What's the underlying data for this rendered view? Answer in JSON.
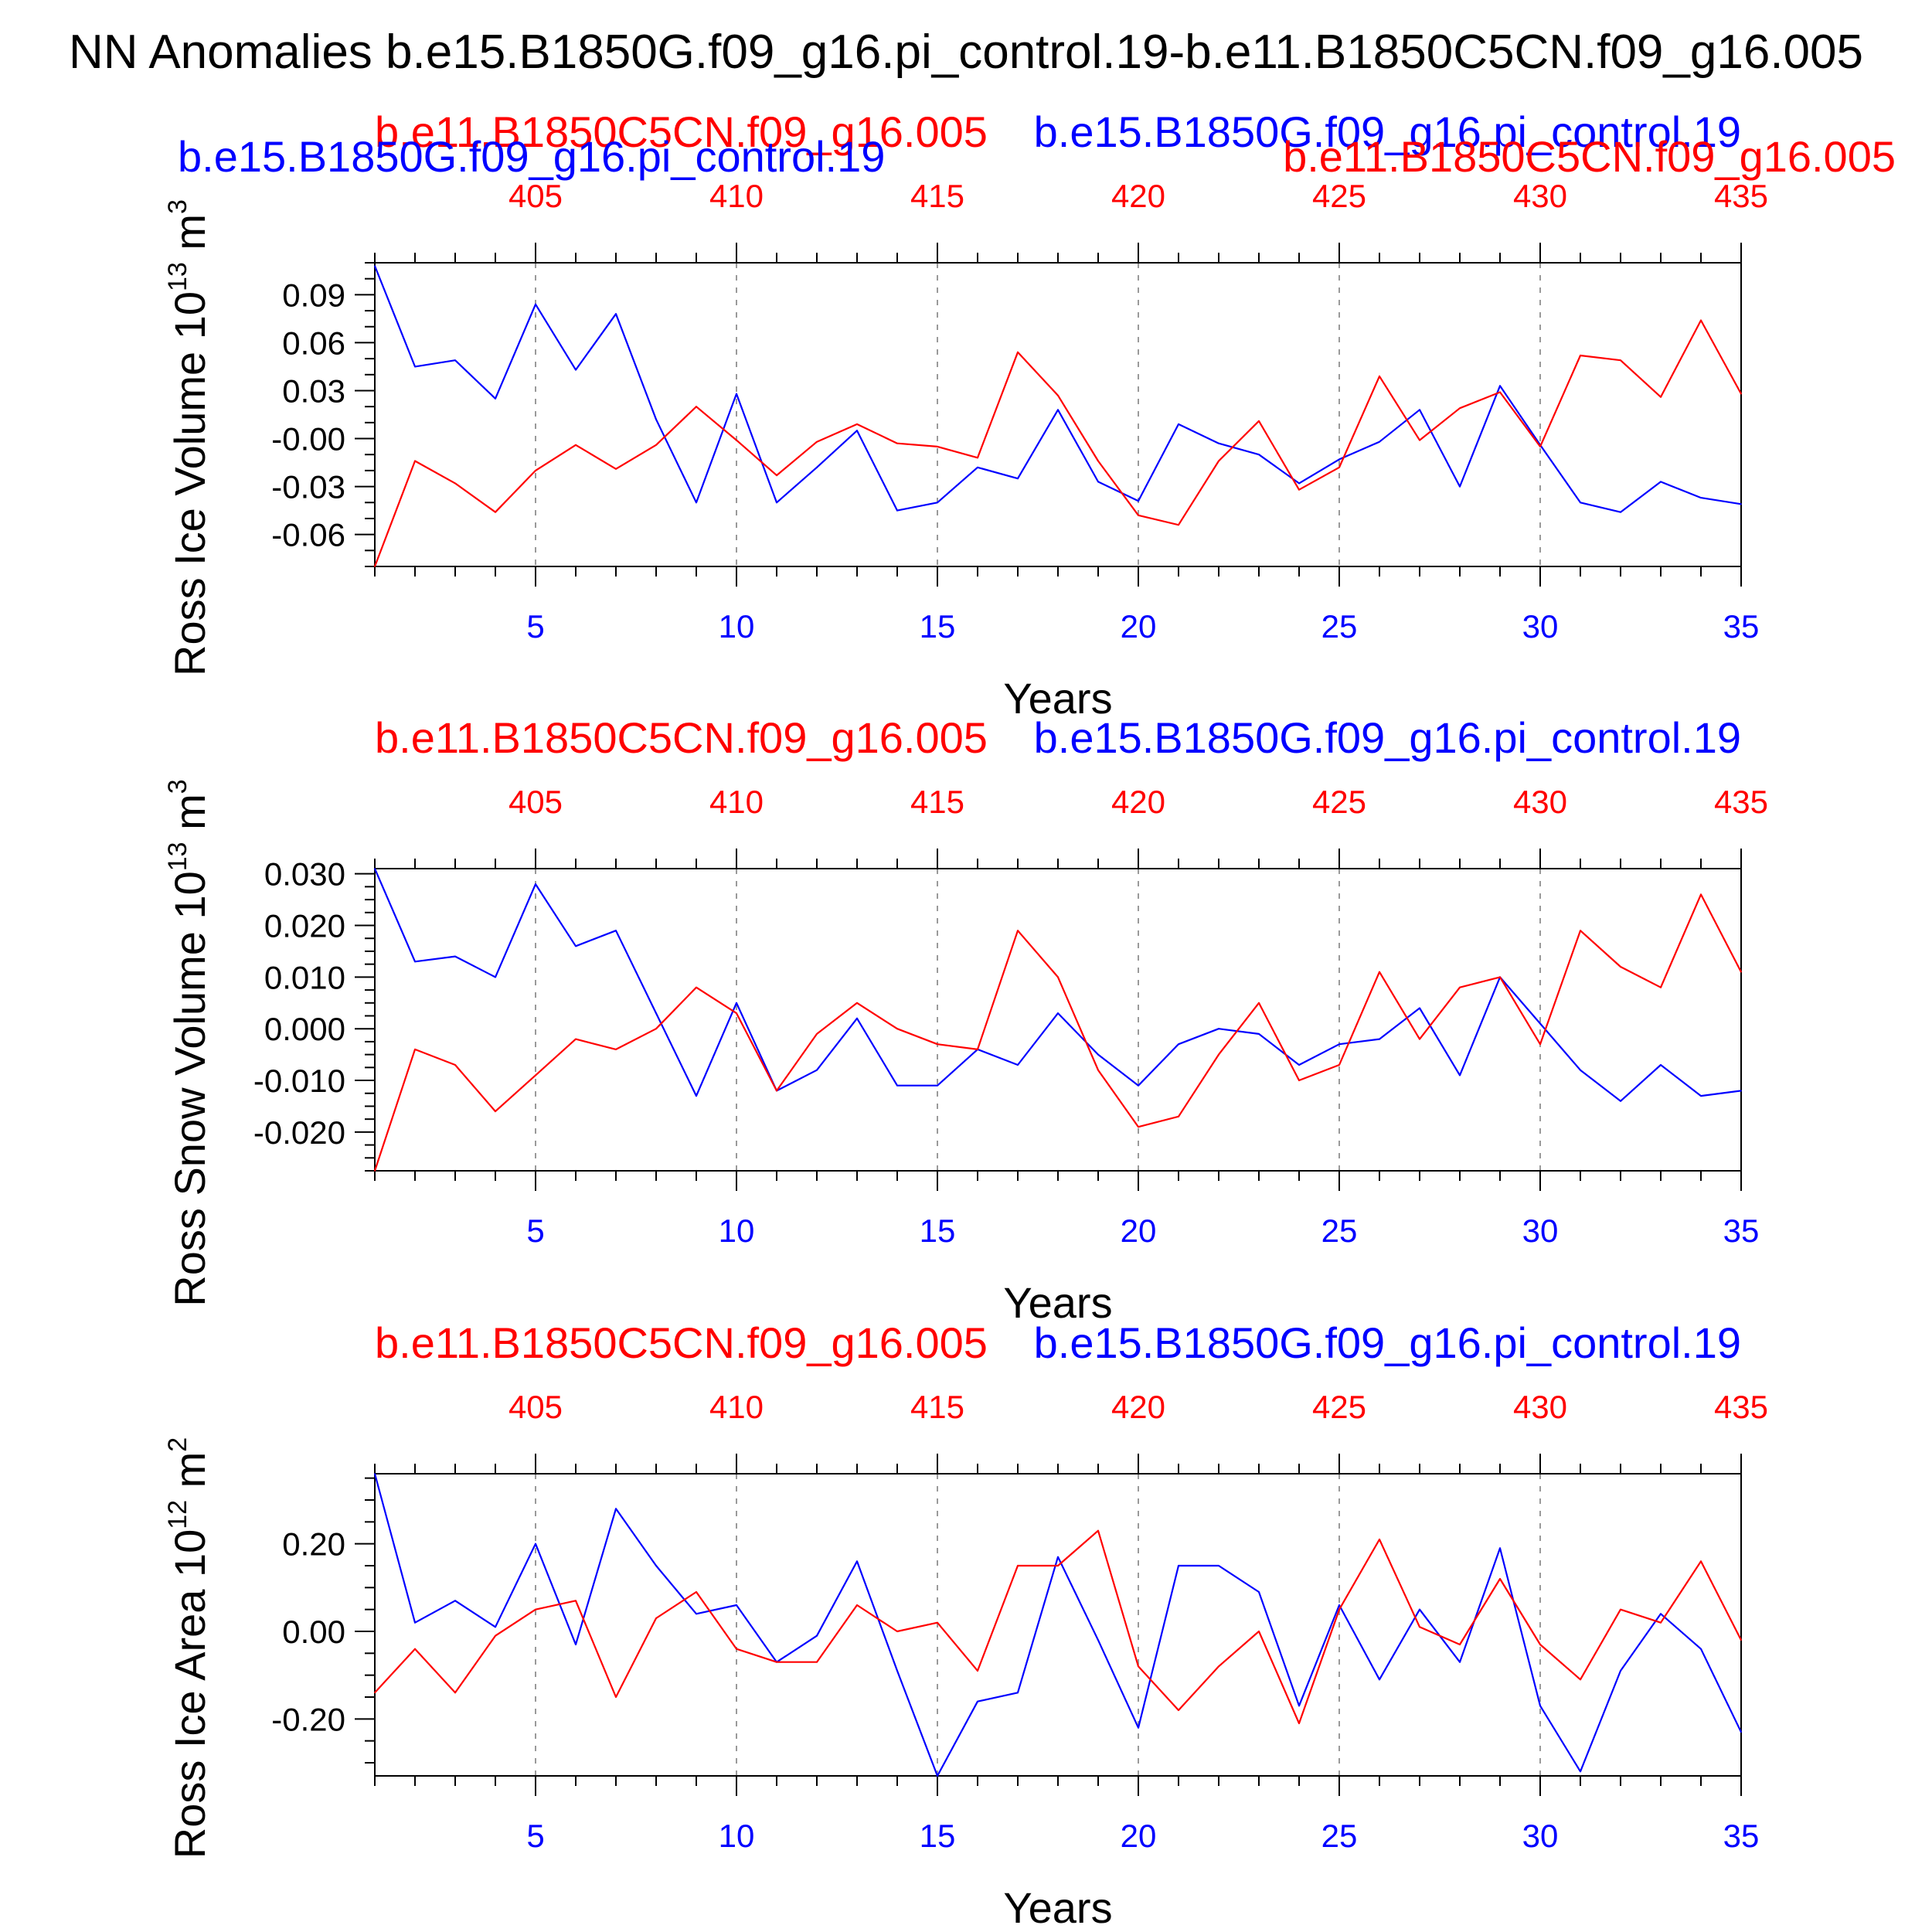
{
  "page_title": "NN Anomalies b.e15.B1850G.f09_g16.pi_control.19-b.e11.B1850C5CN.f09_g16.005",
  "colors": {
    "series_blue": "#0000ff",
    "series_red": "#ff0000",
    "axis": "#000000",
    "grid": "#9a9a9a"
  },
  "chart_data": [
    {
      "type": "line",
      "ylabel": "Ross Ice Volume 10",
      "ylabel_exp": "13",
      "ylabel_unit": " m",
      "ylabel_unit_exp": "3",
      "xlabel": "Years",
      "xlim": [
        1,
        35
      ],
      "ylim": [
        -0.08,
        0.11
      ],
      "yticks": [
        -0.06,
        -0.03,
        0.0,
        0.03,
        0.06,
        0.09
      ],
      "ytick_labels": [
        "-0.06",
        "-0.03",
        "-0.00",
        "0.03",
        "0.06",
        "0.09"
      ],
      "yminor_step": 0.01,
      "xticks": [
        5,
        10,
        15,
        20,
        25,
        30,
        35
      ],
      "xtick_labels": [
        "5",
        "10",
        "15",
        "20",
        "25",
        "30",
        "35"
      ],
      "top_xticks": [
        5,
        10,
        15,
        20,
        25,
        30,
        35
      ],
      "top_xtick_labels": [
        "405",
        "410",
        "415",
        "420",
        "425",
        "430",
        "435"
      ],
      "grid": "vertical-dashed",
      "header_texts": [
        {
          "text": "b.e11.B1850C5CN.f09_g16.005",
          "color": "#ff0000",
          "anchor": "left-of-plot",
          "row": 1
        },
        {
          "text": "b.e15.B1850G.f09_g16.pi_control.19",
          "color": "#0000ff",
          "anchor": "right-of-plot",
          "row": 1
        },
        {
          "text": "b.e15.B1850G.f09_g16.pi_control.19",
          "color": "#0000ff",
          "anchor": "left-of-plot",
          "row": 2
        },
        {
          "text": "b.e11.B1850C5CN.f09_g16.005",
          "color": "#ff0000",
          "anchor": "right-of-plot",
          "row": 2
        }
      ],
      "x": [
        1,
        2,
        3,
        4,
        5,
        6,
        7,
        8,
        9,
        10,
        11,
        12,
        13,
        14,
        15,
        16,
        17,
        18,
        19,
        20,
        21,
        22,
        23,
        24,
        25,
        26,
        27,
        28,
        29,
        30,
        31,
        32,
        33,
        34,
        35
      ],
      "series": [
        {
          "name": "b.e15.B1850G.f09_g16.pi_control.19",
          "color": "#0000ff",
          "values": [
            0.108,
            0.045,
            0.049,
            0.025,
            0.084,
            0.043,
            0.078,
            0.012,
            -0.04,
            0.028,
            -0.04,
            -0.018,
            0.005,
            -0.045,
            -0.04,
            -0.018,
            -0.025,
            0.018,
            -0.027,
            -0.039,
            0.009,
            -0.003,
            -0.01,
            -0.028,
            -0.013,
            -0.002,
            0.018,
            -0.03,
            0.033,
            -0.004,
            -0.04,
            -0.046,
            -0.027,
            -0.037,
            -0.041
          ]
        },
        {
          "name": "b.e11.B1850C5CN.f09_g16.005",
          "color": "#ff0000",
          "values": [
            -0.08,
            -0.014,
            -0.028,
            -0.046,
            -0.02,
            -0.004,
            -0.019,
            -0.004,
            0.02,
            -0.001,
            -0.023,
            -0.002,
            0.009,
            -0.003,
            -0.005,
            -0.012,
            0.054,
            0.027,
            -0.014,
            -0.048,
            -0.054,
            -0.014,
            0.011,
            -0.032,
            -0.018,
            0.039,
            -0.001,
            0.019,
            0.029,
            -0.005,
            0.052,
            0.049,
            0.026,
            0.074,
            0.028
          ]
        }
      ]
    },
    {
      "type": "line",
      "ylabel": "Ross Snow Volume 10",
      "ylabel_exp": "13",
      "ylabel_unit": " m",
      "ylabel_unit_exp": "3",
      "xlabel": "Years",
      "xlim": [
        1,
        35
      ],
      "ylim": [
        -0.0275,
        0.031
      ],
      "yticks": [
        -0.02,
        -0.01,
        0.0,
        0.01,
        0.02,
        0.03
      ],
      "ytick_labels": [
        "-0.020",
        "-0.010",
        "0.000",
        "0.010",
        "0.020",
        "0.030"
      ],
      "yminor_step": 0.0025,
      "xticks": [
        5,
        10,
        15,
        20,
        25,
        30,
        35
      ],
      "xtick_labels": [
        "5",
        "10",
        "15",
        "20",
        "25",
        "30",
        "35"
      ],
      "top_xticks": [
        5,
        10,
        15,
        20,
        25,
        30,
        35
      ],
      "top_xtick_labels": [
        "405",
        "410",
        "415",
        "420",
        "425",
        "430",
        "435"
      ],
      "grid": "vertical-dashed",
      "header_texts": [
        {
          "text": "b.e11.B1850C5CN.f09_g16.005",
          "color": "#ff0000",
          "anchor": "left-of-plot",
          "row": 1
        },
        {
          "text": "b.e15.B1850G.f09_g16.pi_control.19",
          "color": "#0000ff",
          "anchor": "right-of-plot",
          "row": 1
        }
      ],
      "x": [
        1,
        2,
        3,
        4,
        5,
        6,
        7,
        8,
        9,
        10,
        11,
        12,
        13,
        14,
        15,
        16,
        17,
        18,
        19,
        20,
        21,
        22,
        23,
        24,
        25,
        26,
        27,
        28,
        29,
        30,
        31,
        32,
        33,
        34,
        35
      ],
      "series": [
        {
          "name": "b.e15.B1850G.f09_g16.pi_control.19",
          "color": "#0000ff",
          "values": [
            0.031,
            0.013,
            0.014,
            0.01,
            0.028,
            0.016,
            0.019,
            0.003,
            -0.013,
            0.005,
            -0.012,
            -0.008,
            0.002,
            -0.011,
            -0.011,
            -0.004,
            -0.007,
            0.003,
            -0.005,
            -0.011,
            -0.003,
            0.0,
            -0.001,
            -0.007,
            -0.003,
            -0.002,
            0.004,
            -0.009,
            0.01,
            0.001,
            -0.008,
            -0.014,
            -0.007,
            -0.013,
            -0.012
          ]
        },
        {
          "name": "b.e11.B1850C5CN.f09_g16.005",
          "color": "#ff0000",
          "values": [
            -0.0275,
            -0.004,
            -0.007,
            -0.016,
            -0.009,
            -0.002,
            -0.004,
            0.0,
            0.008,
            0.003,
            -0.012,
            -0.001,
            0.005,
            0.0,
            -0.003,
            -0.004,
            0.019,
            0.01,
            -0.008,
            -0.019,
            -0.017,
            -0.005,
            0.005,
            -0.01,
            -0.007,
            0.011,
            -0.002,
            0.008,
            0.01,
            -0.003,
            0.019,
            0.012,
            0.008,
            0.026,
            0.011
          ]
        }
      ]
    },
    {
      "type": "line",
      "ylabel": "Ross Ice Area 10",
      "ylabel_exp": "12",
      "ylabel_unit": " m",
      "ylabel_unit_exp": "2",
      "xlabel": "Years",
      "xlim": [
        1,
        35
      ],
      "ylim": [
        -0.33,
        0.36
      ],
      "yticks": [
        -0.2,
        0.0,
        0.2
      ],
      "ytick_labels": [
        "-0.20",
        "0.00",
        "0.20"
      ],
      "yminor_step": 0.05,
      "xticks": [
        5,
        10,
        15,
        20,
        25,
        30,
        35
      ],
      "xtick_labels": [
        "5",
        "10",
        "15",
        "20",
        "25",
        "30",
        "35"
      ],
      "top_xticks": [
        5,
        10,
        15,
        20,
        25,
        30,
        35
      ],
      "top_xtick_labels": [
        "405",
        "410",
        "415",
        "420",
        "425",
        "430",
        "435"
      ],
      "grid": "vertical-dashed",
      "header_texts": [
        {
          "text": "b.e11.B1850C5CN.f09_g16.005",
          "color": "#ff0000",
          "anchor": "left-of-plot",
          "row": 1
        },
        {
          "text": "b.e15.B1850G.f09_g16.pi_control.19",
          "color": "#0000ff",
          "anchor": "right-of-plot",
          "row": 1
        }
      ],
      "x": [
        1,
        2,
        3,
        4,
        5,
        6,
        7,
        8,
        9,
        10,
        11,
        12,
        13,
        14,
        15,
        16,
        17,
        18,
        19,
        20,
        21,
        22,
        23,
        24,
        25,
        26,
        27,
        28,
        29,
        30,
        31,
        32,
        33,
        34,
        35
      ],
      "series": [
        {
          "name": "b.e15.B1850G.f09_g16.pi_control.19",
          "color": "#0000ff",
          "values": [
            0.36,
            0.02,
            0.07,
            0.01,
            0.2,
            -0.03,
            0.28,
            0.15,
            0.04,
            0.06,
            -0.07,
            -0.01,
            0.16,
            -0.09,
            -0.33,
            -0.16,
            -0.14,
            0.17,
            -0.02,
            -0.22,
            0.15,
            0.15,
            0.09,
            -0.17,
            0.06,
            -0.11,
            0.05,
            -0.07,
            0.19,
            -0.17,
            -0.32,
            -0.09,
            0.04,
            -0.04,
            -0.23
          ]
        },
        {
          "name": "b.e11.B1850C5CN.f09_g16.005",
          "color": "#ff0000",
          "values": [
            -0.14,
            -0.04,
            -0.14,
            -0.01,
            0.05,
            0.07,
            -0.15,
            0.03,
            0.09,
            -0.04,
            -0.07,
            -0.07,
            0.06,
            0.0,
            0.02,
            -0.09,
            0.15,
            0.15,
            0.23,
            -0.08,
            -0.18,
            -0.08,
            0.0,
            -0.21,
            0.05,
            0.21,
            0.01,
            -0.03,
            0.12,
            -0.03,
            -0.11,
            0.05,
            0.02,
            0.16,
            -0.02
          ]
        }
      ]
    }
  ]
}
